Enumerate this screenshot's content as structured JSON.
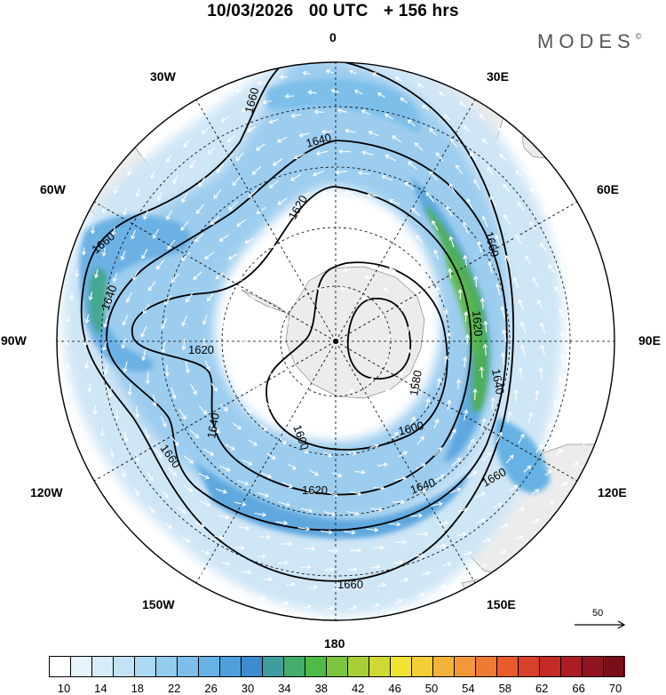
{
  "header": {
    "date": "10/03/2026",
    "time": "00 UTC",
    "lead": "+ 156 hrs"
  },
  "brand": {
    "name": "MODES",
    "mark": "©"
  },
  "map": {
    "projection": "south-polar-stereographic",
    "lon_labels": {
      "lon_0": "0",
      "lon_30e": "30E",
      "lon_60e": "60E",
      "lon_90e": "90E",
      "lon_120e": "120E",
      "lon_150e": "150E",
      "lon_180": "180",
      "lon_150w": "150W",
      "lon_120w": "120W",
      "lon_90w": "90W",
      "lon_60w": "60W",
      "lon_30w": "30W"
    },
    "contour_labels": [
      {
        "id": "c1660_nw",
        "text": "1660"
      },
      {
        "id": "c1640_n",
        "text": "1640"
      },
      {
        "id": "c1620_n",
        "text": "1620"
      },
      {
        "id": "c1660_w",
        "text": "1660"
      },
      {
        "id": "c1640_w",
        "text": "1640"
      },
      {
        "id": "c1620_w",
        "text": "1620"
      },
      {
        "id": "c1640_sw",
        "text": "1640"
      },
      {
        "id": "c1660_sw",
        "text": "1660"
      },
      {
        "id": "c1600_s",
        "text": "1600"
      },
      {
        "id": "c1620_s",
        "text": "1620"
      },
      {
        "id": "c1660_e",
        "text": "1660"
      },
      {
        "id": "c1620_e",
        "text": "1620"
      },
      {
        "id": "c1640_e",
        "text": "1640"
      },
      {
        "id": "c1580_c",
        "text": "1580"
      },
      {
        "id": "c1600_se",
        "text": "1600"
      },
      {
        "id": "c1640_se",
        "text": "1640"
      },
      {
        "id": "c1660_se",
        "text": "1660"
      },
      {
        "id": "c1660_bottom",
        "text": "1660"
      }
    ],
    "vector_scale": "50"
  },
  "colorbar": {
    "colors": [
      "#ffffff",
      "#e8f4fb",
      "#d6ecf8",
      "#c3e3f5",
      "#acd8f2",
      "#94ccee",
      "#7dbfe9",
      "#66b2e4",
      "#4e9fdb",
      "#3e8ccf",
      "#3f9d9f",
      "#44ad6c",
      "#4fba47",
      "#7cc43c",
      "#a8ce36",
      "#d0d933",
      "#f1e431",
      "#f4cd37",
      "#f3b33a",
      "#f29838",
      "#ee7a33",
      "#e85b2d",
      "#d9402a",
      "#c52a26",
      "#ac1c24",
      "#901520",
      "#7a0f1a"
    ],
    "ticks": [
      "10",
      "14",
      "18",
      "22",
      "26",
      "30",
      "34",
      "38",
      "42",
      "46",
      "50",
      "54",
      "58",
      "62",
      "66",
      "70"
    ]
  }
}
